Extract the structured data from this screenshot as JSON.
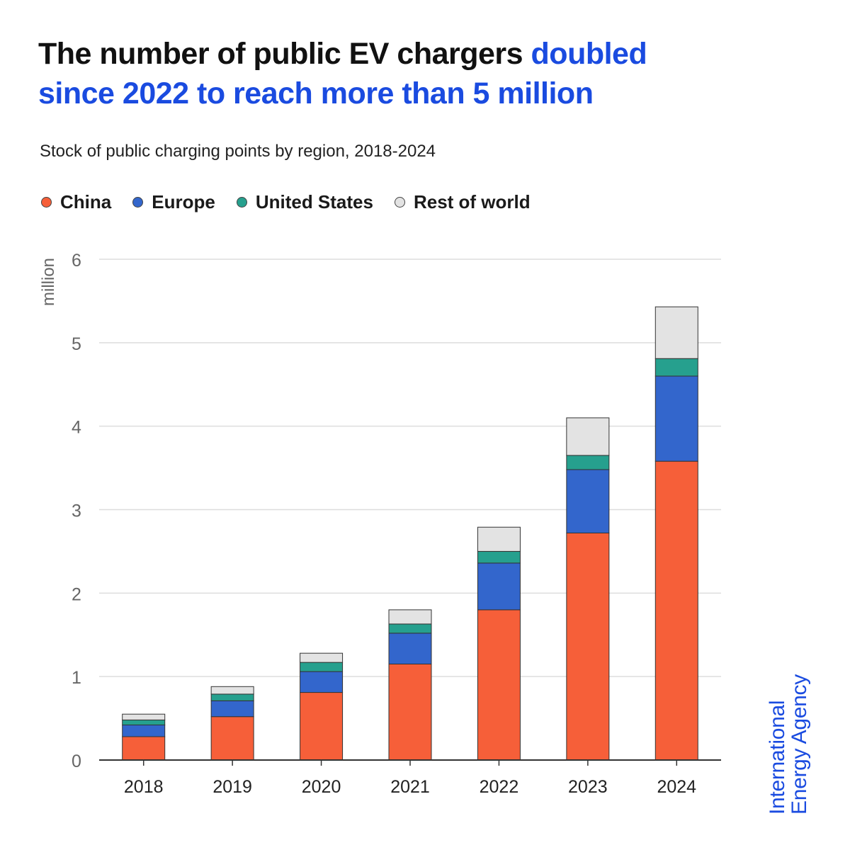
{
  "headline": {
    "part1": "The number of public EV chargers ",
    "accent_line1": "doubled",
    "accent_line2": "since 2022 to reach more than 5 million"
  },
  "subtitle": "Stock of public charging points by region, 2018-2024",
  "brand": {
    "line1": "International",
    "line2": "Energy Agency"
  },
  "colors": {
    "accent": "#1a4be0",
    "china": "#f65f39",
    "europe": "#3366cc",
    "united_states": "#26a08e",
    "rest_of_world": "#e3e3e3"
  },
  "chart_data": {
    "type": "bar",
    "stacked": true,
    "categories": [
      "2018",
      "2019",
      "2020",
      "2021",
      "2022",
      "2023",
      "2024"
    ],
    "series": [
      {
        "name": "China",
        "color": "#f65f39",
        "values": [
          0.28,
          0.52,
          0.81,
          1.15,
          1.8,
          2.72,
          3.58
        ]
      },
      {
        "name": "Europe",
        "color": "#3366cc",
        "values": [
          0.14,
          0.19,
          0.25,
          0.37,
          0.56,
          0.76,
          1.02
        ]
      },
      {
        "name": "United States",
        "color": "#26a08e",
        "values": [
          0.06,
          0.08,
          0.11,
          0.11,
          0.14,
          0.17,
          0.21
        ]
      },
      {
        "name": "Rest of world",
        "color": "#e3e3e3",
        "values": [
          0.07,
          0.09,
          0.11,
          0.17,
          0.29,
          0.45,
          0.62
        ]
      }
    ],
    "ylabel": "million",
    "ylim": [
      0,
      6
    ],
    "yticks": [
      0,
      1,
      2,
      3,
      4,
      5,
      6
    ],
    "grid": true,
    "legend": "top-left"
  }
}
